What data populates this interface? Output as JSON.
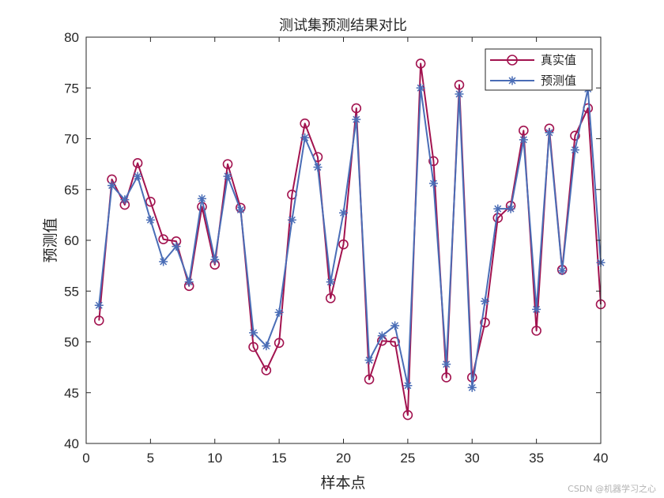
{
  "chart_data": {
    "type": "line",
    "title": "测试集预测结果对比",
    "xlabel": "样本点",
    "ylabel": "预测值",
    "xlim": [
      0,
      40
    ],
    "ylim": [
      40,
      80
    ],
    "xticks": [
      0,
      5,
      10,
      15,
      20,
      25,
      30,
      35,
      40
    ],
    "yticks": [
      40,
      45,
      50,
      55,
      60,
      65,
      70,
      75,
      80
    ],
    "grid": false,
    "legend_position": "top-right",
    "x": [
      1,
      2,
      3,
      4,
      5,
      6,
      7,
      8,
      9,
      10,
      11,
      12,
      13,
      14,
      15,
      16,
      17,
      18,
      19,
      20,
      21,
      22,
      23,
      24,
      25,
      26,
      27,
      28,
      29,
      30,
      31,
      32,
      33,
      34,
      35,
      36,
      37,
      38,
      39,
      40
    ],
    "series": [
      {
        "name": "真实值",
        "color": "#A2134F",
        "marker": "circle",
        "values": [
          52.1,
          66.0,
          63.5,
          67.6,
          63.8,
          60.1,
          59.9,
          55.5,
          63.3,
          57.6,
          67.5,
          63.2,
          49.5,
          47.2,
          49.9,
          64.5,
          71.5,
          68.2,
          54.3,
          59.6,
          73.0,
          46.3,
          50.1,
          50.0,
          42.8,
          77.4,
          67.8,
          46.5,
          75.3,
          46.5,
          51.9,
          62.2,
          63.4,
          70.8,
          51.1,
          71.0,
          57.1,
          70.3,
          73.0,
          53.7
        ]
      },
      {
        "name": "预测值",
        "color": "#4A6DB6",
        "marker": "asterisk",
        "values": [
          53.6,
          65.4,
          64.0,
          66.3,
          62.0,
          57.9,
          59.4,
          55.9,
          64.1,
          58.1,
          66.3,
          63.0,
          50.9,
          49.6,
          52.9,
          62.0,
          70.1,
          67.2,
          55.9,
          62.7,
          71.9,
          48.2,
          50.6,
          51.6,
          45.7,
          75.0,
          65.6,
          47.8,
          74.4,
          45.5,
          54.0,
          63.1,
          63.1,
          69.9,
          53.2,
          70.6,
          57.0,
          68.9,
          74.9,
          57.8
        ]
      }
    ]
  },
  "watermark": "CSDN @机器学习之心"
}
